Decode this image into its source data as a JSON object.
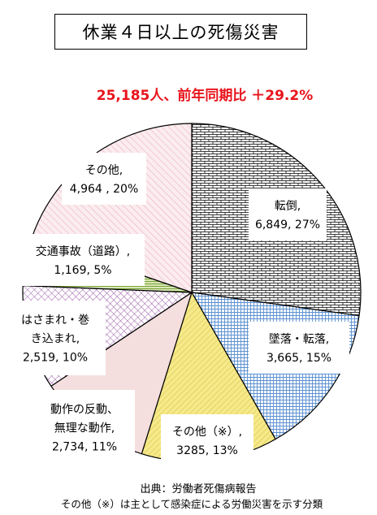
{
  "chart_data": {
    "type": "pie",
    "title": "休業４日以上の死傷災害",
    "subtitle": "25,185人、前年同期比 ＋29.2%",
    "total": 25185,
    "slices": [
      {
        "label": "転倒,",
        "value": 6849,
        "value_label": "6,849, 27%",
        "percent": 27,
        "pattern": "brick"
      },
      {
        "label": "墜落・転落,",
        "value": 3665,
        "value_label": "3,665, 15%",
        "percent": 15,
        "pattern": "grid-blue"
      },
      {
        "label": "その他（※）,",
        "value": 3285,
        "value_label": "3285, 13%",
        "percent": 13,
        "pattern": "yellow-diagonal"
      },
      {
        "label": "動作の反動、無理な動作,",
        "value": 2734,
        "value_label": "2,734, 11%",
        "percent": 11,
        "pattern": "pink-solid"
      },
      {
        "label": "はさまれ・巻き込まれ,",
        "value": 2519,
        "value_label": "2,519, 10%",
        "percent": 10,
        "pattern": "purple-crosshatch"
      },
      {
        "label": "交通事故（道路）,",
        "value": 1169,
        "value_label": "1,169, 5%",
        "percent": 5,
        "pattern": "green-stripe"
      },
      {
        "label": "その他,",
        "value": 4964,
        "value_label": "4,964 , 20%",
        "percent": 20,
        "pattern": "pink-diagonal"
      }
    ],
    "start_direction": "top, clockwise",
    "legend": "none, labels in boxes"
  },
  "footer": {
    "source": "出典：労働者死傷病報告",
    "note": "その他（※）は主として感染症による労働災害を示す分類"
  },
  "colors": {
    "headline": "#e8141c",
    "outline": "#000000",
    "blue_grid": "#5a8fd0",
    "yellow_fill": "#f6e98a",
    "pink_solid": "#f4dede",
    "purple_hatch": "#9a5aa8",
    "green_stripe": "#7aa23a",
    "pink_diagonal": "#e8a8b8"
  }
}
